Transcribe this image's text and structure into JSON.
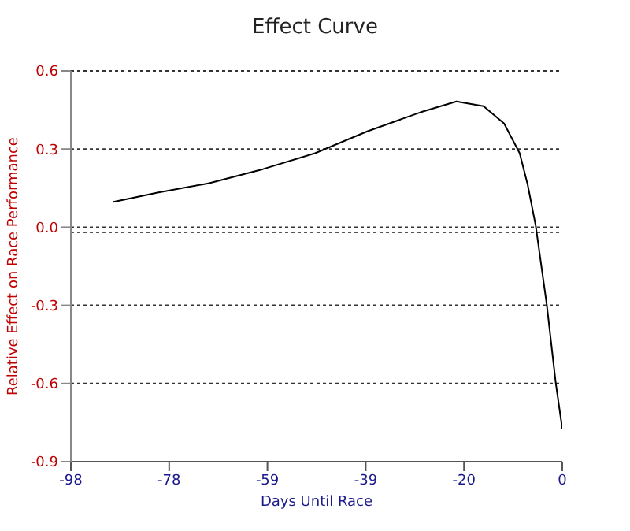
{
  "chart_data": {
    "type": "line",
    "title": "Effect Curve",
    "xlabel": "Days Until Race",
    "ylabel": "Relative Effect on Race Performance",
    "x": [
      -89.5,
      -80.7,
      -70.4,
      -59.7,
      -49.3,
      -38.9,
      -28.3,
      -21.1,
      -15.7,
      -11.6,
      -8.5,
      -6.9,
      -5.3,
      -3.1,
      -1.3,
      0
    ],
    "series": [
      {
        "color": "#000000",
        "values": [
          0.097,
          0.133,
          0.169,
          0.223,
          0.284,
          0.368,
          0.441,
          0.483,
          0.465,
          0.398,
          0.284,
          0.163,
          0.006,
          -0.296,
          -0.598,
          -0.773
        ]
      }
    ],
    "xlim": [
      -98,
      0
    ],
    "xticks": [
      {
        "value": -98,
        "label": "-98"
      },
      {
        "value": -78.4,
        "label": "-78"
      },
      {
        "value": -58.8,
        "label": "-59"
      },
      {
        "value": -39.2,
        "label": "-39"
      },
      {
        "value": -19.6,
        "label": "-20"
      },
      0
    ],
    "ylim": [
      -0.9,
      0.6
    ],
    "yticks": [
      {
        "value": -0.9,
        "label": "-0.9"
      },
      {
        "value": -0.6,
        "label": "-0.6"
      },
      {
        "value": -0.3,
        "label": "-0.3"
      },
      {
        "value": 0,
        "label": "0.0"
      },
      {
        "value": 0.3,
        "label": "0.3"
      },
      {
        "value": 0.6,
        "label": "0.6"
      }
    ],
    "ref_lines": [
      {
        "axis": "y",
        "value": -0.02,
        "color": "#555555",
        "line_style": "dotted"
      }
    ],
    "grid": "y",
    "legend": false,
    "marker": "none",
    "line_style": "solid"
  }
}
